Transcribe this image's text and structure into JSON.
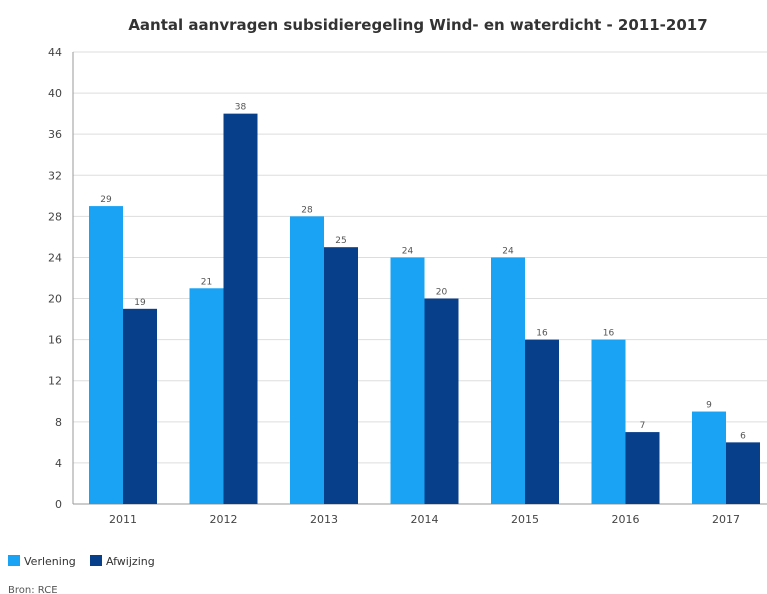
{
  "chart_data": {
    "type": "bar",
    "title": "Aantal aanvragen subsidieregeling Wind- en waterdicht - 2011-2017",
    "categories": [
      "2011",
      "2012",
      "2013",
      "2014",
      "2015",
      "2016",
      "2017"
    ],
    "series": [
      {
        "name": "Verlening",
        "color": "#1aa3f5",
        "values": [
          29,
          21,
          28,
          24,
          24,
          16,
          9
        ]
      },
      {
        "name": "Afwijzing",
        "color": "#073f8a",
        "values": [
          19,
          38,
          25,
          20,
          16,
          7,
          6
        ]
      }
    ],
    "ylim": [
      0,
      44
    ],
    "yticks": [
      0,
      4,
      8,
      12,
      16,
      20,
      24,
      28,
      32,
      36,
      40,
      44
    ],
    "grid": true,
    "legend_position": "bottom-left",
    "source": "Bron: RCE"
  }
}
